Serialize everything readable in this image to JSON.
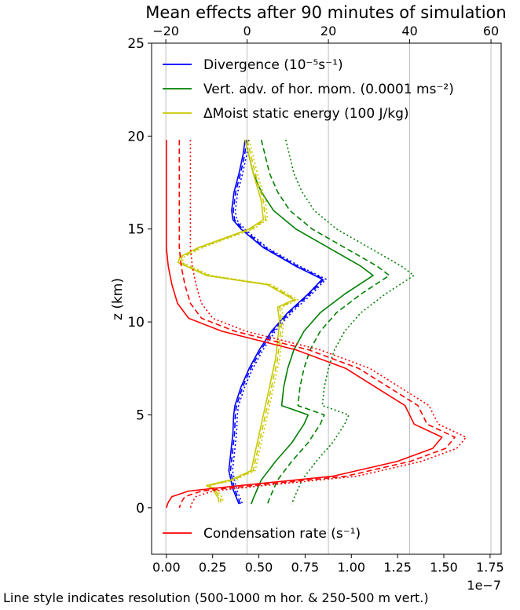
{
  "chart_data": {
    "type": "line",
    "title": "Mean effects after 90 minutes of simulation",
    "ylabel": "z (km)",
    "ylim": [
      -2.5,
      25
    ],
    "yticks": [
      "0",
      "5",
      "10",
      "15",
      "20",
      "25"
    ],
    "bottom_axis": {
      "xlim": [
        -8e-09,
        1.81e-07
      ],
      "ticks": [
        "0.00",
        "0.25",
        "0.50",
        "0.75",
        "1.00",
        "1.25",
        "1.50",
        "1.75"
      ],
      "offset_label": "1e−7"
    },
    "top_axis": {
      "xlim": [
        -23.5,
        62.5
      ],
      "ticks": [
        "−20",
        "0",
        "20",
        "40",
        "60"
      ],
      "grid": true
    },
    "footer": "Line style indicates resolution (500-1000 m hor. & 250-500 m vert.)",
    "legend_top": [
      {
        "text": "Divergence (10⁻⁵s⁻¹)",
        "color": "#0000ff"
      },
      {
        "text": "Vert. adv. of hor. mom. (0.0001 ms⁻²)",
        "color": "#008000"
      },
      {
        "text": "ΔMoist static energy (100 J/kg)",
        "color": "#c8c800"
      }
    ],
    "legend_bottom": [
      {
        "text": "Condensation rate (s⁻¹)",
        "color": "#ff0000"
      }
    ],
    "series": [
      {
        "axis": "top",
        "color": "#0000ff",
        "styles": [
          "solid",
          "dashed",
          "dotted"
        ],
        "offsets": [
          0,
          0.4,
          0.9
        ],
        "z": [
          19.8,
          19.0,
          18.0,
          17.0,
          16.0,
          15.5,
          15.0,
          14.0,
          13.0,
          12.3,
          11.5,
          10.5,
          9.5,
          8.5,
          7.5,
          6.5,
          5.5,
          5.0,
          4.0,
          3.0,
          2.0,
          1.0,
          0.2
        ],
        "x": [
          -0.5,
          -1.0,
          -2.0,
          -3.2,
          -3.8,
          -3.5,
          -1.5,
          4.0,
          12.0,
          18.5,
          15.0,
          10.0,
          6.0,
          3.0,
          0.5,
          -1.5,
          -3.0,
          -3.3,
          -3.5,
          -4.0,
          -4.5,
          -3.5,
          -2.0
        ]
      },
      {
        "axis": "top",
        "color": "#008000",
        "styles": [
          "solid",
          "dashed",
          "dotted"
        ],
        "offsets": [
          0,
          4.0,
          10.0
        ],
        "z": [
          19.8,
          18.0,
          17.0,
          16.0,
          15.0,
          14.0,
          13.0,
          12.5,
          11.5,
          10.5,
          9.5,
          8.5,
          7.5,
          6.5,
          5.5,
          5.0,
          4.5,
          3.5,
          2.5,
          1.5,
          0.5,
          0.2
        ],
        "x": [
          -0.5,
          1.5,
          3.5,
          6.5,
          12.0,
          20.0,
          28.0,
          31.0,
          24.0,
          18.0,
          14.0,
          11.5,
          10.0,
          9.0,
          8.5,
          15.0,
          14.0,
          11.0,
          7.0,
          3.5,
          1.5,
          1.0
        ]
      },
      {
        "axis": "top",
        "color": "#c8c800",
        "styles": [
          "solid",
          "dashed",
          "dotted"
        ],
        "offsets": [
          0,
          0.5,
          1.0
        ],
        "z": [
          19.8,
          18.0,
          16.5,
          15.5,
          15.0,
          14.0,
          13.5,
          13.2,
          12.5,
          12.0,
          11.2,
          10.8,
          10.0,
          9.0,
          8.0,
          7.0,
          6.0,
          5.0,
          4.0,
          3.0,
          2.0,
          1.5,
          1.2,
          1.0,
          0.5,
          0.3
        ],
        "x": [
          -0.5,
          1.5,
          3.5,
          4.0,
          0.5,
          -12.0,
          -16.5,
          -17.0,
          -10.0,
          5.0,
          11.5,
          7.5,
          8.0,
          7.5,
          7.0,
          6.0,
          5.0,
          4.0,
          3.0,
          2.0,
          1.0,
          -4.0,
          -10.0,
          -8.5,
          -7.0,
          -7.0
        ]
      },
      {
        "axis": "bottom",
        "color": "#ff0000",
        "styles": [
          "solid",
          "dashed",
          "dotted"
        ],
        "offsets": [
          0,
          7e-09,
          1.3e-08
        ],
        "z": [
          19.8,
          16.0,
          14.0,
          13.0,
          12.0,
          11.0,
          10.2,
          9.5,
          8.5,
          7.5,
          6.5,
          5.5,
          4.5,
          3.8,
          3.2,
          2.5,
          1.7,
          1.2,
          0.9,
          0.6,
          0.3,
          0.0
        ],
        "x": [
          0.0,
          0.0,
          0.0,
          1e-09,
          3e-09,
          6e-09,
          1.2e-08,
          3e-08,
          7e-08,
          9.7e-08,
          1.13e-07,
          1.29e-07,
          1.34e-07,
          1.49e-07,
          1.44e-07,
          1.25e-07,
          9e-08,
          4e-08,
          1.2e-08,
          3e-09,
          1e-09,
          0.0
        ]
      }
    ]
  }
}
